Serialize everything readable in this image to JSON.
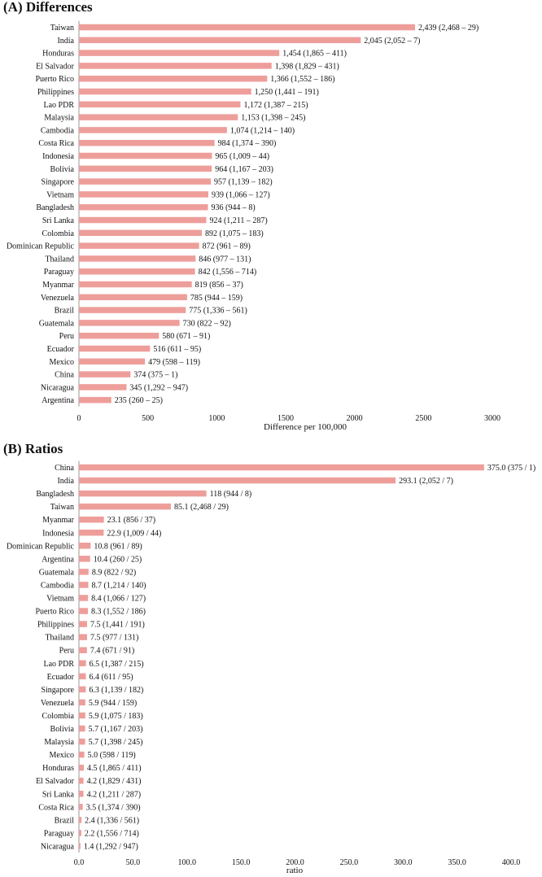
{
  "chart_data": [
    {
      "type": "bar",
      "orientation": "horizontal",
      "title": "(A) Differences",
      "xlabel": "Difference per 100,000",
      "xlim": [
        0,
        3000
      ],
      "xticks": [
        "0",
        "500",
        "1000",
        "1500",
        "2000",
        "2500",
        "3000"
      ],
      "bar_color": "#ee9e9a",
      "categories": [
        "Taiwan",
        "India",
        "Honduras",
        "El Salvador",
        "Puerto Rico",
        "Philippines",
        "Lao PDR",
        "Malaysia",
        "Cambodia",
        "Costa Rica",
        "Indonesia",
        "Bolivia",
        "Singapore",
        "Vietnam",
        "Bangladesh",
        "Sri Lanka",
        "Colombia",
        "Dominican Republic",
        "Thailand",
        "Paraguay",
        "Myanmar",
        "Venezuela",
        "Brazil",
        "Guatemala",
        "Peru",
        "Ecuador",
        "Mexico",
        "China",
        "Nicaragua",
        "Argentina"
      ],
      "values": [
        2439,
        2045,
        1454,
        1398,
        1366,
        1250,
        1172,
        1153,
        1074,
        984,
        965,
        964,
        957,
        939,
        936,
        924,
        892,
        872,
        846,
        842,
        819,
        785,
        775,
        730,
        580,
        516,
        479,
        374,
        345,
        235
      ],
      "labels": [
        "2,439  (2,468 – 29)",
        "2,045  (2,052 – 7)",
        "1,454  (1,865 – 411)",
        "1,398  (1,829 – 431)",
        "1,366  (1,552 – 186)",
        "1,250  (1,441 – 191)",
        "1,172  (1,387 – 215)",
        "1,153  (1,398 – 245)",
        "1,074  (1,214 – 140)",
        "984  (1,374 – 390)",
        "965  (1,009 – 44)",
        "964  (1,167 – 203)",
        "957  (1,139 – 182)",
        "939  (1,066 – 127)",
        "936  (944 – 8)",
        "924  (1,211 – 287)",
        "892  (1,075 – 183)",
        "872  (961 – 89)",
        "846  (977 – 131)",
        "842  (1,556 – 714)",
        "819  (856 – 37)",
        "785  (944 – 159)",
        "775  (1,336 – 561)",
        "730  (822 – 92)",
        "580  (671 – 91)",
        "516  (611 – 95)",
        "479  (598 – 119)",
        "374  (375 – 1)",
        "345  (1,292 – 947)",
        "235  (260 – 25)"
      ]
    },
    {
      "type": "bar",
      "orientation": "horizontal",
      "title": "(B) Ratios",
      "xlabel": "ratio",
      "xlim": [
        0,
        400
      ],
      "xticks": [
        "0.0",
        "50.0",
        "100.0",
        "150.0",
        "200.0",
        "250.0",
        "300.0",
        "350.0",
        "400.0"
      ],
      "bar_color": "#ee9e9a",
      "categories": [
        "China",
        "India",
        "Bangladesh",
        "Taiwan",
        "Myanmar",
        "Indonesia",
        "Dominican Republic",
        "Argentina",
        "Guatemala",
        "Cambodia",
        "Vietnam",
        "Puerto Rico",
        "Philippines",
        "Thailand",
        "Peru",
        "Lao PDR",
        "Ecuador",
        "Singapore",
        "Venezuela",
        "Colombia",
        "Bolivia",
        "Malaysia",
        "Mexico",
        "Honduras",
        "El Salvador",
        "Sri Lanka",
        "Costa Rica",
        "Brazil",
        "Paraguay",
        "Nicaragua"
      ],
      "values": [
        375.0,
        293.1,
        118,
        85.1,
        23.1,
        22.9,
        10.8,
        10.4,
        8.9,
        8.7,
        8.4,
        8.3,
        7.5,
        7.5,
        7.4,
        6.5,
        6.4,
        6.3,
        5.9,
        5.9,
        5.7,
        5.7,
        5.0,
        4.5,
        4.2,
        4.2,
        3.5,
        2.4,
        2.2,
        1.4
      ],
      "labels": [
        "375.0  (375 / 1)",
        "293.1  (2,052 / 7)",
        "118  (944 / 8)",
        "85.1  (2,468 / 29)",
        "23.1  (856 / 37)",
        "22.9  (1,009 / 44)",
        "10.8  (961 / 89)",
        "10.4  (260 / 25)",
        "8.9  (822 / 92)",
        "8.7  (1,214 / 140)",
        "8.4  (1,066 / 127)",
        "8.3  (1,552 / 186)",
        "7.5  (1,441 / 191)",
        "7.5  (977 / 131)",
        "7.4  (671 / 91)",
        "6.5  (1,387 / 215)",
        "6.4  (611 / 95)",
        "6.3  (1,139 / 182)",
        "5.9  (944 / 159)",
        "5.9  (1,075 / 183)",
        "5.7  (1,167 / 203)",
        "5.7  (1,398 / 245)",
        "5.0  (598 / 119)",
        "4.5  (1,865 / 411)",
        "4.2  (1,829 / 431)",
        "4.2  (1,211 / 287)",
        "3.5  (1,374 / 390)",
        "2.4  (1,336 / 561)",
        "2.2  (1,556 / 714)",
        "1.4  (1,292 / 947)"
      ]
    }
  ]
}
